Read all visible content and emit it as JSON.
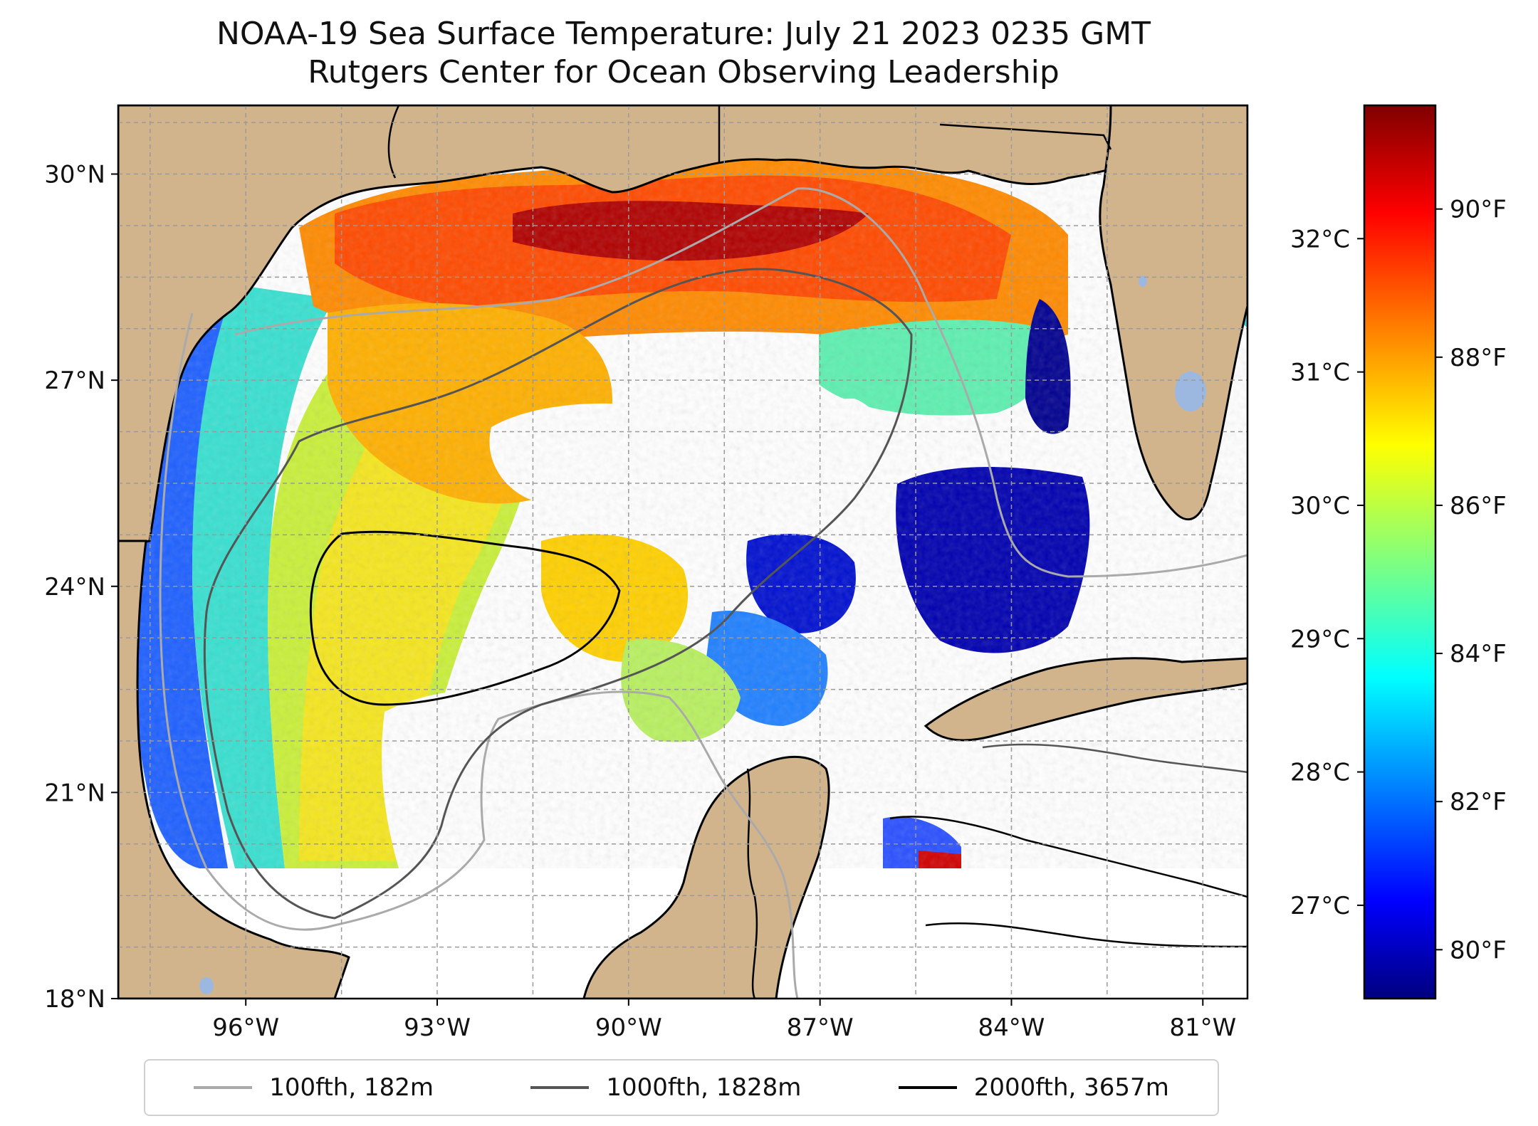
{
  "title": {
    "line1": "NOAA-19 Sea Surface Temperature: July 21 2023 0235 GMT",
    "line2": "Rutgers Center for Ocean Observing Leadership"
  },
  "map": {
    "lon_range": [
      -98.0,
      -80.3
    ],
    "lat_range": [
      18.0,
      31.0
    ],
    "lon_ticks": [
      -96,
      -93,
      -90,
      -87,
      -84,
      -81
    ],
    "lat_ticks": [
      18,
      21,
      24,
      27,
      30
    ],
    "lon_tick_labels": [
      "96°W",
      "93°W",
      "90°W",
      "87°W",
      "84°W",
      "81°W"
    ],
    "lat_tick_labels": [
      "18°N",
      "21°N",
      "24°N",
      "27°N",
      "30°N"
    ],
    "gridlines": true,
    "colors": {
      "land": "#d2b48c",
      "no_data_water": "#ffffff",
      "lakes": "#9db8e0",
      "coastline": "#000000"
    }
  },
  "colorbar": {
    "colormap": "jet",
    "celsius_labels": [
      "27°C",
      "28°C",
      "29°C",
      "30°C",
      "31°C",
      "32°C"
    ],
    "celsius_values": [
      27,
      28,
      29,
      30,
      31,
      32
    ],
    "fahrenheit_labels": [
      "80°F",
      "82°F",
      "84°F",
      "86°F",
      "88°F",
      "90°F"
    ],
    "fahrenheit_values": [
      80,
      82,
      84,
      86,
      88,
      90
    ],
    "range_c": [
      26.3,
      33.0
    ]
  },
  "legend": {
    "items": [
      {
        "label": "100fth, 182m",
        "color": "#aaaaaa"
      },
      {
        "label": "1000fth, 1828m",
        "color": "#555555"
      },
      {
        "label": "2000fth, 3657m",
        "color": "#000000"
      }
    ]
  }
}
